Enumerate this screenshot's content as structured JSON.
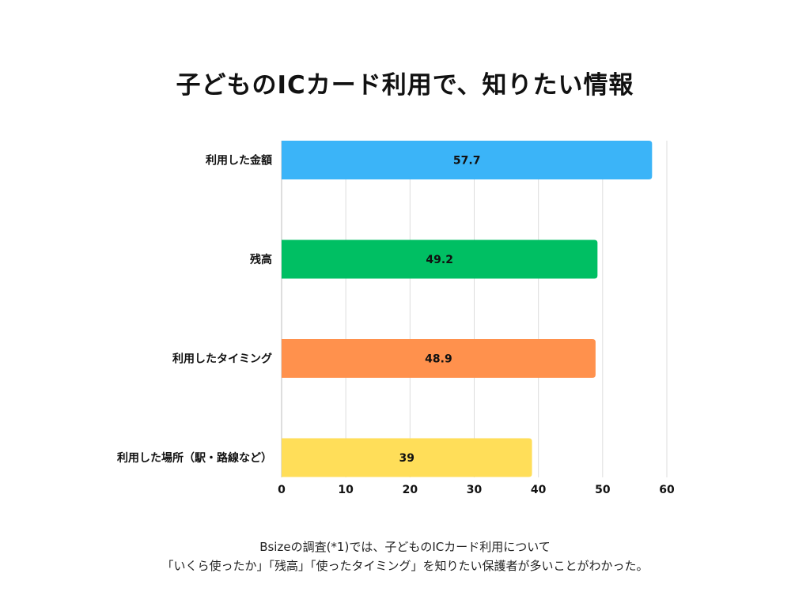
{
  "chart_data": {
    "type": "bar",
    "orientation": "horizontal",
    "title": "子どものICカード利用で、知りたい情報",
    "categories": [
      "利用した金額",
      "残高",
      "利用したタイミング",
      "利用した場所（駅・路線など）"
    ],
    "values": [
      57.7,
      49.2,
      48.9,
      39
    ],
    "value_labels": [
      "57.7",
      "49.2",
      "48.9",
      "39"
    ],
    "colors": [
      "#3bb4f8",
      "#00bf63",
      "#ff914d",
      "#ffde59"
    ],
    "xlim": [
      0,
      60
    ],
    "xticks": [
      0,
      10,
      20,
      30,
      40,
      50,
      60
    ],
    "tick_labels": [
      "0",
      "10",
      "20",
      "30",
      "40",
      "50",
      "60"
    ],
    "xlabel": "",
    "ylabel": "",
    "grid": true
  },
  "caption": {
    "line1": "Bsizeの調査(*1)では、子どものICカード利用について",
    "line2": "「いくら使ったか」「残高」「使ったタイミング」を知りたい保護者が多いことがわかった。"
  }
}
